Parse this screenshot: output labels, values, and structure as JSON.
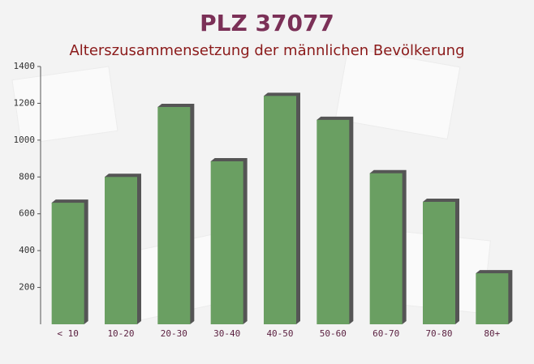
{
  "chart_data": {
    "type": "bar",
    "title": "PLZ 37077",
    "subtitle": "Alterszusammensetzung der männlichen Bevölkerung",
    "categories": [
      "< 10",
      "10-20",
      "20-30",
      "30-40",
      "40-50",
      "50-60",
      "60-70",
      "70-80",
      "80+"
    ],
    "values": [
      660,
      800,
      1180,
      885,
      1240,
      1110,
      820,
      665,
      277
    ],
    "color": "#6a9f62",
    "ylim": [
      0,
      1400
    ],
    "yticks": [
      200,
      400,
      600,
      800,
      1000,
      1200,
      1400
    ]
  }
}
